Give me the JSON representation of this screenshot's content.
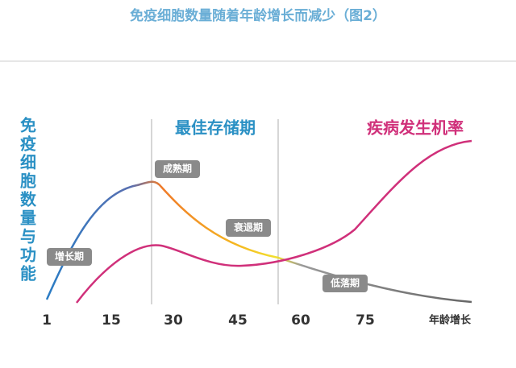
{
  "title": "免疫细胞数量随着年龄增长而减少（图2）",
  "y_axis_label": "免疫细胞数量与功能",
  "sections": {
    "optimal_storage": "最佳存储期",
    "disease_rate": "疾病发生机率"
  },
  "phases": [
    "增长期",
    "成熟期",
    "衰退期",
    "低落期"
  ],
  "x_axis": {
    "ticks": [
      1,
      15,
      30,
      45,
      60,
      75
    ],
    "label": "年龄增长"
  }
}
